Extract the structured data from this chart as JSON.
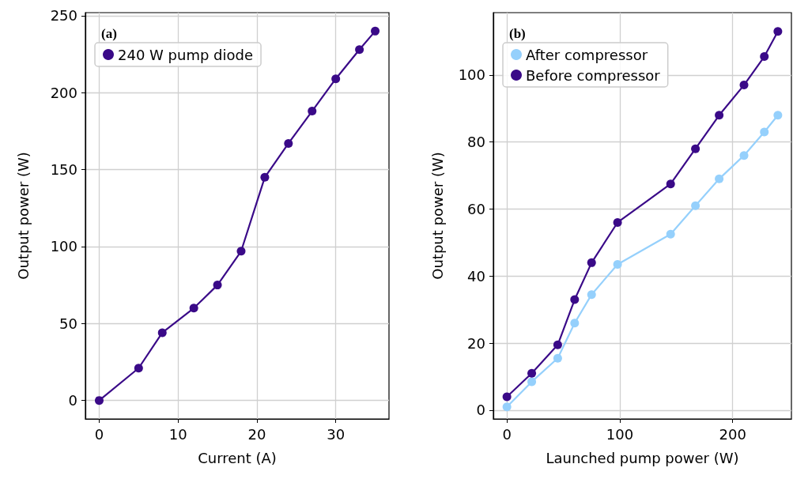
{
  "chart_data": [
    {
      "type": "line",
      "xlabel": "Current (A)",
      "ylabel": "Output power (W)",
      "annotations": [
        "(a)"
      ],
      "x": [
        0,
        5,
        8,
        12,
        15,
        18,
        21,
        24,
        27,
        30,
        33,
        35
      ],
      "series": [
        {
          "name": "240 W pump diode",
          "color": "#3a0a88",
          "values": [
            0,
            21,
            44,
            60,
            75,
            97,
            145,
            167,
            188,
            209,
            228,
            240
          ]
        }
      ],
      "xlim": [
        -1.75,
        36.75
      ],
      "xticks": [
        0,
        10,
        20,
        30
      ],
      "ylim": [
        -12,
        252
      ],
      "yticks": [
        0,
        50,
        100,
        150,
        200,
        250
      ],
      "grid": true,
      "legend": "top left",
      "marker": "circle",
      "line_style": "solid"
    },
    {
      "type": "line",
      "xlabel": "Launched pump power (W)",
      "ylabel": "Output power (W)",
      "annotations": [
        "(b)"
      ],
      "x": [
        0,
        22,
        45,
        60,
        75,
        98,
        145,
        167,
        188,
        210,
        228,
        240
      ],
      "series": [
        {
          "name": "After compressor",
          "color": "#95d0fc",
          "values": [
            1,
            8.5,
            15.5,
            26,
            34.5,
            43.5,
            52.5,
            61,
            69,
            76,
            83,
            88
          ]
        },
        {
          "name": "Before compressor",
          "color": "#3a0a88",
          "values": [
            4,
            11,
            19.5,
            33,
            44,
            56,
            67.5,
            78,
            88,
            97,
            105.5,
            113
          ]
        }
      ],
      "xlim": [
        -12,
        252
      ],
      "xticks": [
        0,
        100,
        200
      ],
      "ylim": [
        -2.6,
        118.6
      ],
      "yticks": [
        0,
        20,
        40,
        60,
        80,
        100
      ],
      "grid": true,
      "legend": "top left",
      "marker": "circle",
      "line_style": "solid"
    }
  ]
}
